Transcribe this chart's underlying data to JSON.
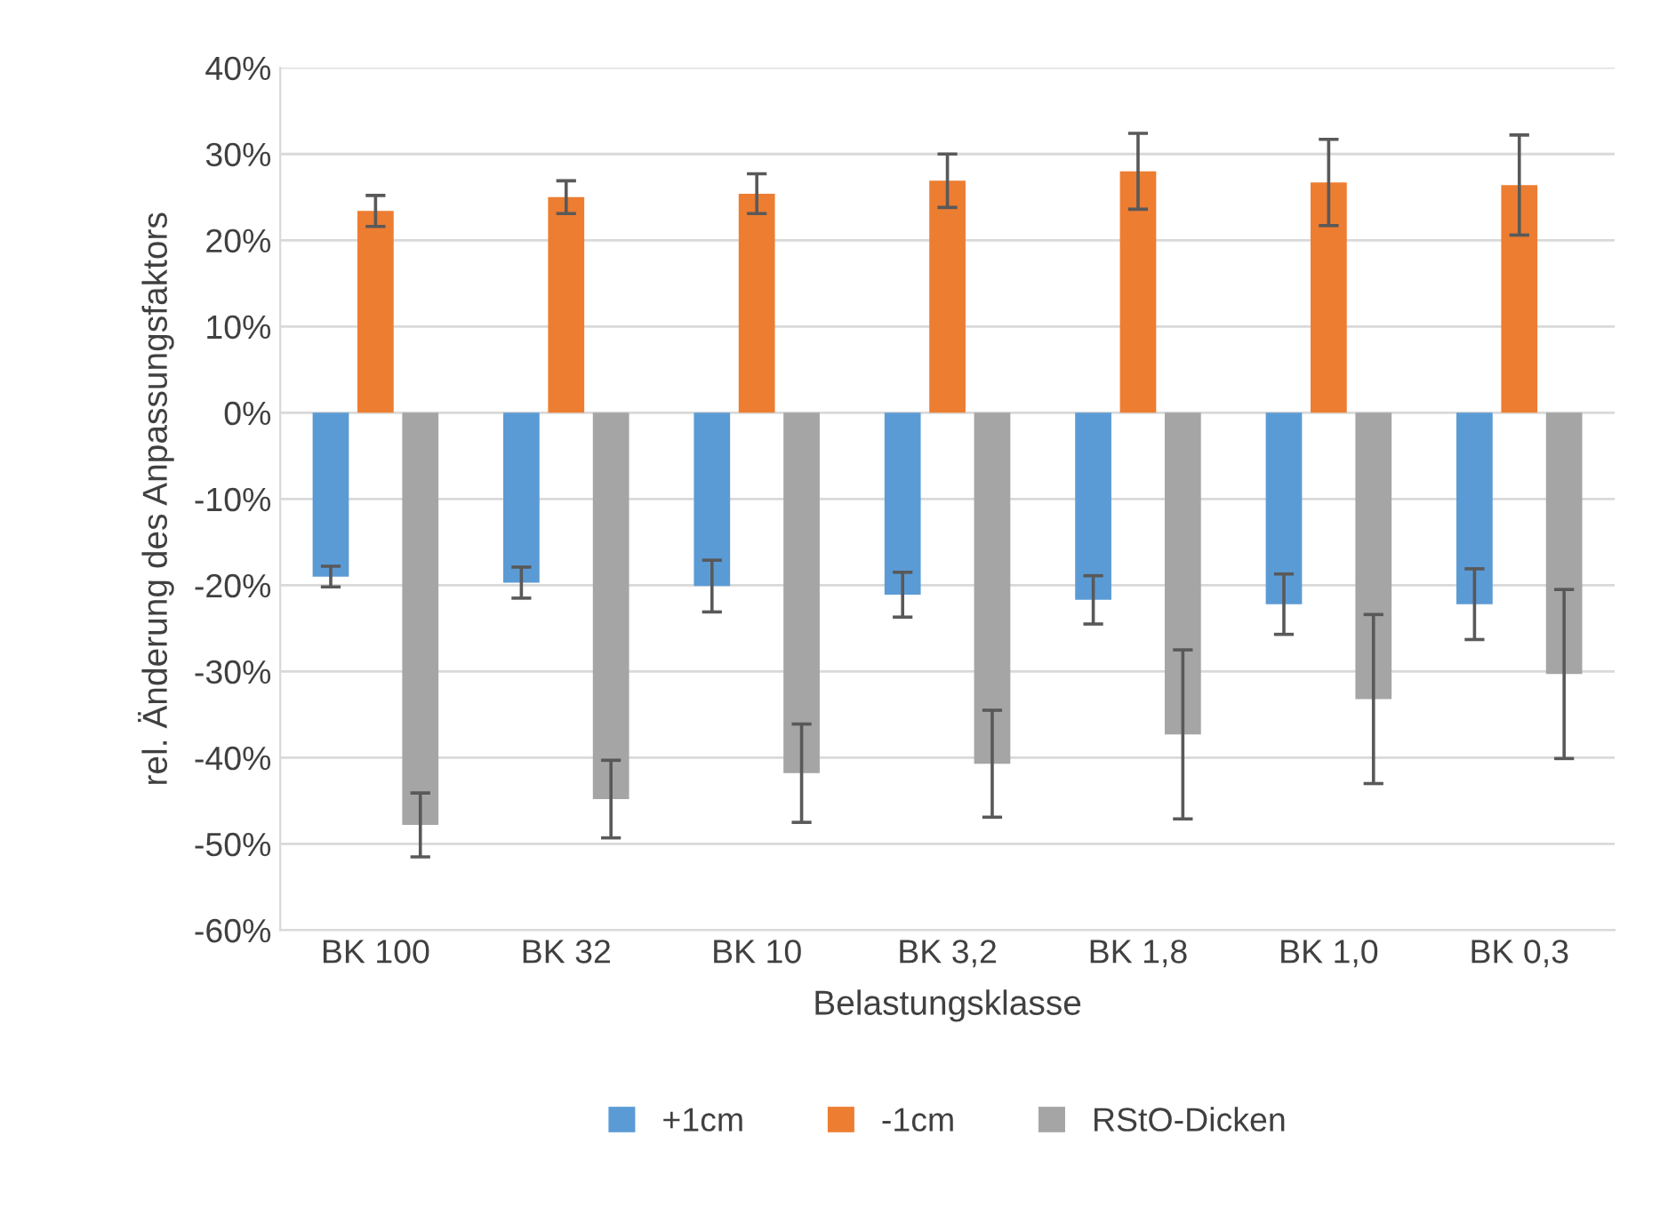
{
  "chart_data": {
    "type": "bar",
    "xlabel": "Belastungsklasse",
    "ylabel": "rel. Änderung des Anpassungsfaktors",
    "categories": [
      "BK 100",
      "BK 32",
      "BK 10",
      "BK 3,2",
      "BK 1,8",
      "BK 1,0",
      "BK 0,3"
    ],
    "series": [
      {
        "name": "+1cm",
        "color": "#5b9bd5",
        "values": [
          -19.0,
          -19.7,
          -20.1,
          -21.1,
          -21.7,
          -22.2,
          -22.2
        ],
        "errors": [
          1.2,
          1.8,
          3.0,
          2.6,
          2.8,
          3.5,
          4.1
        ]
      },
      {
        "name": "-1cm",
        "color": "#ed7d31",
        "values": [
          23.4,
          25.0,
          25.4,
          26.9,
          28.0,
          26.7,
          26.4
        ],
        "errors": [
          1.8,
          1.9,
          2.3,
          3.1,
          4.4,
          5.0,
          5.8
        ]
      },
      {
        "name": "RStO-Dicken",
        "color": "#a5a5a5",
        "values": [
          -47.8,
          -44.8,
          -41.8,
          -40.7,
          -37.3,
          -33.2,
          -30.3
        ],
        "errors": [
          3.7,
          4.5,
          5.7,
          6.2,
          9.8,
          9.8,
          9.8
        ]
      }
    ],
    "ylim": [
      -60,
      40
    ],
    "yticks": [
      {
        "value": -60,
        "label": "-60%"
      },
      {
        "value": -50,
        "label": "-50%"
      },
      {
        "value": -40,
        "label": "-40%"
      },
      {
        "value": -30,
        "label": "-30%"
      },
      {
        "value": -20,
        "label": "-20%"
      },
      {
        "value": -10,
        "label": "-10%"
      },
      {
        "value": 0,
        "label": "0%"
      },
      {
        "value": 10,
        "label": "10%"
      },
      {
        "value": 20,
        "label": "20%"
      },
      {
        "value": 30,
        "label": "30%"
      },
      {
        "value": 40,
        "label": "40%"
      }
    ],
    "grid": "y",
    "legend": "bottom"
  }
}
